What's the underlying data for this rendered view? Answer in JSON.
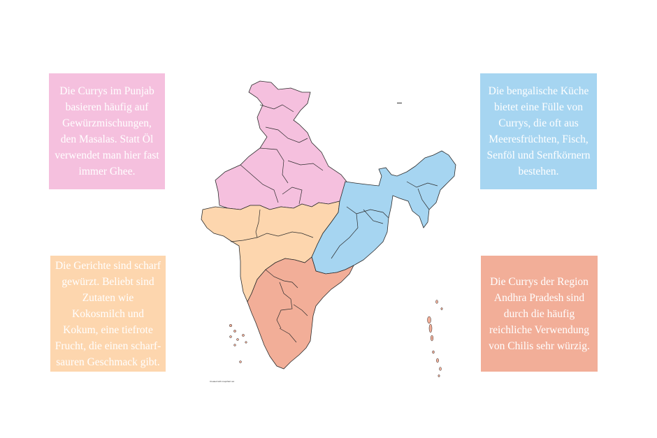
{
  "colors": {
    "north": "#f5c0de",
    "east": "#a6d5f1",
    "west": "#fdd6ae",
    "south": "#f2ae98",
    "border": "#2b2b2b"
  },
  "cards": {
    "north": {
      "text": "Die Currys im Punjab basieren häufig auf Gewürzmischungen, den Masalas. Statt Öl verwendet man hier fast immer Ghee."
    },
    "east": {
      "text": "Die bengalische Küche bietet eine Fülle von Currys, die oft aus Meeresfrüchten, Fisch, Senföl und Senfkörnern bestehen."
    },
    "west": {
      "text": "Die Gerichte sind scharf gewürzt. Beliebt sind Zutaten wie Kokosmilch und Kokum, eine tiefrote Frucht, die einen scharf-sauren Geschmack gibt."
    },
    "south": {
      "text": "Die Currys der Region Andhra Pradesh sind durch die häufig reichliche Verwendung von Chilis sehr würzig."
    }
  },
  "map": {
    "credit": "Created with mapchart.net"
  }
}
